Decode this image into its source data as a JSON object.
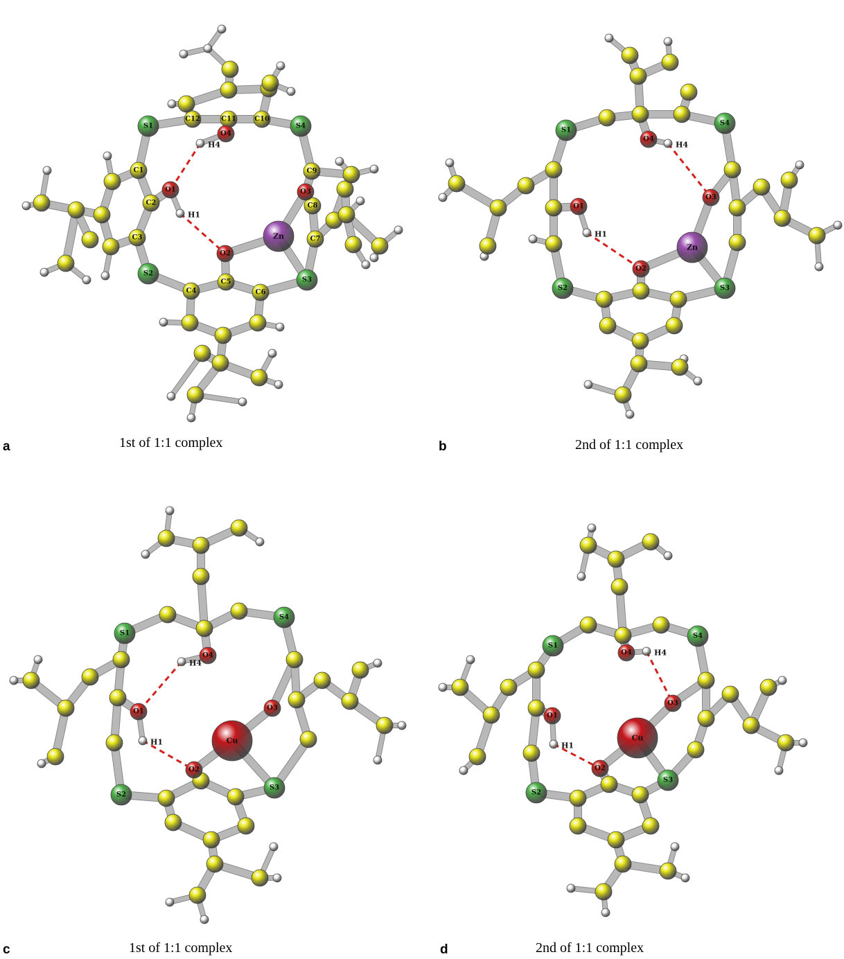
{
  "panels": [
    {
      "letter": "a",
      "caption": "1st of 1:1 complex",
      "metal": "Zn",
      "variant": "zn1"
    },
    {
      "letter": "b",
      "caption": "2nd of 1:1 complex",
      "metal": "Zn",
      "variant": "zn2"
    },
    {
      "letter": "c",
      "caption": "1st of 1:1 complex",
      "metal": "Cu",
      "variant": "cu1"
    },
    {
      "letter": "d",
      "caption": "2nd of 1:1 complex",
      "metal": "Cu",
      "variant": "cu2"
    }
  ],
  "atom_labels": {
    "sulfur": [
      "S1",
      "S2",
      "S3",
      "S4"
    ],
    "oxygen": [
      "O1",
      "O2",
      "O3",
      "O4"
    ],
    "hydrogen": [
      "H1",
      "H4"
    ],
    "carbon": [
      "C1",
      "C2",
      "C3",
      "C4",
      "C5",
      "C6",
      "C7",
      "C8",
      "C9",
      "C10",
      "C11",
      "C12"
    ]
  },
  "colors": {
    "carbon": "#e8e61a",
    "sulfur": "#4fb54a",
    "oxygen": "#d3221e",
    "hydrogen": "#f2f2f2",
    "zinc": "#9b4fb0",
    "copper": "#c4161c",
    "bond": "#b8b8b8",
    "hbond": "#d3221e"
  }
}
